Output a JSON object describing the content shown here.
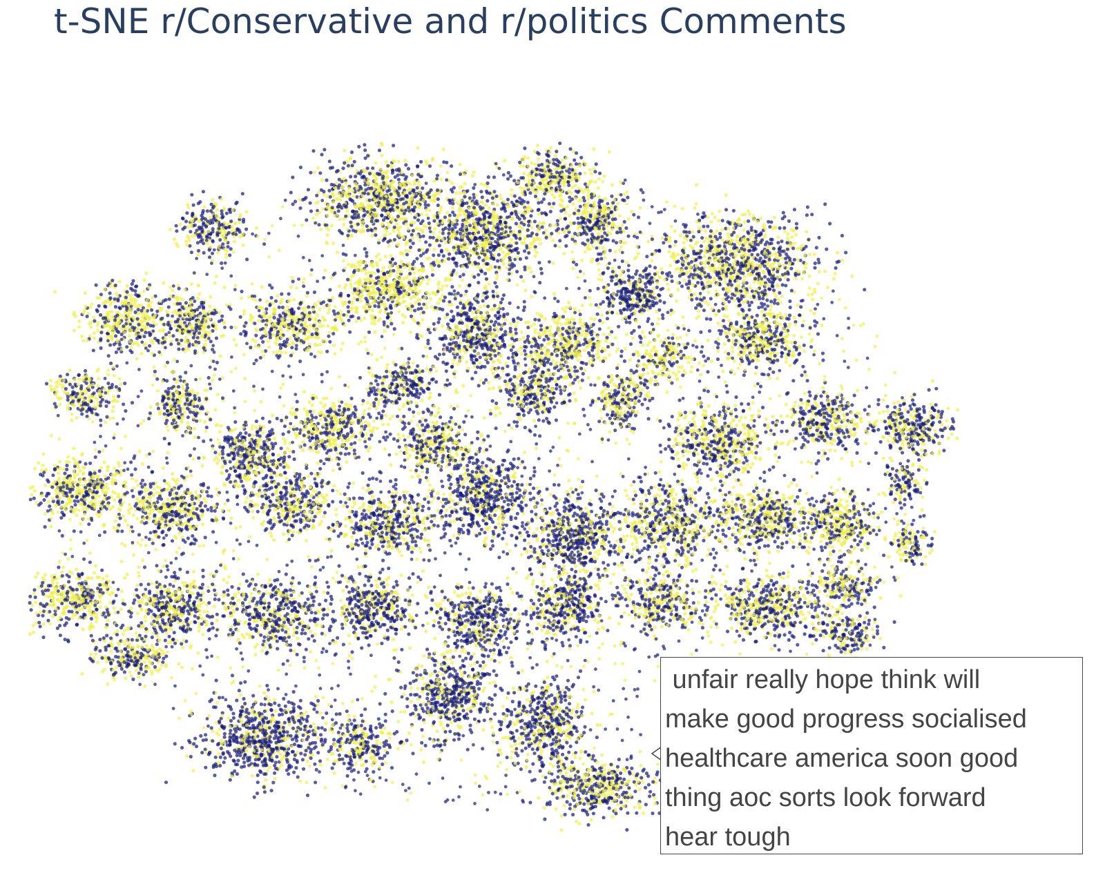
{
  "chart_data": {
    "type": "scatter",
    "title": "t-SNE r/Conservative and r/politics Comments",
    "xlabel": "",
    "ylabel": "",
    "grid": false,
    "legend": "none",
    "series": [
      {
        "color": "#1a1f7a"
      },
      {
        "color": "#f0f050"
      }
    ],
    "hover_text": [
      " unfair really hope think will",
      "make good progress socialised",
      "healthcare america soon good",
      "thing aoc sorts look forward",
      "hear tough"
    ]
  }
}
